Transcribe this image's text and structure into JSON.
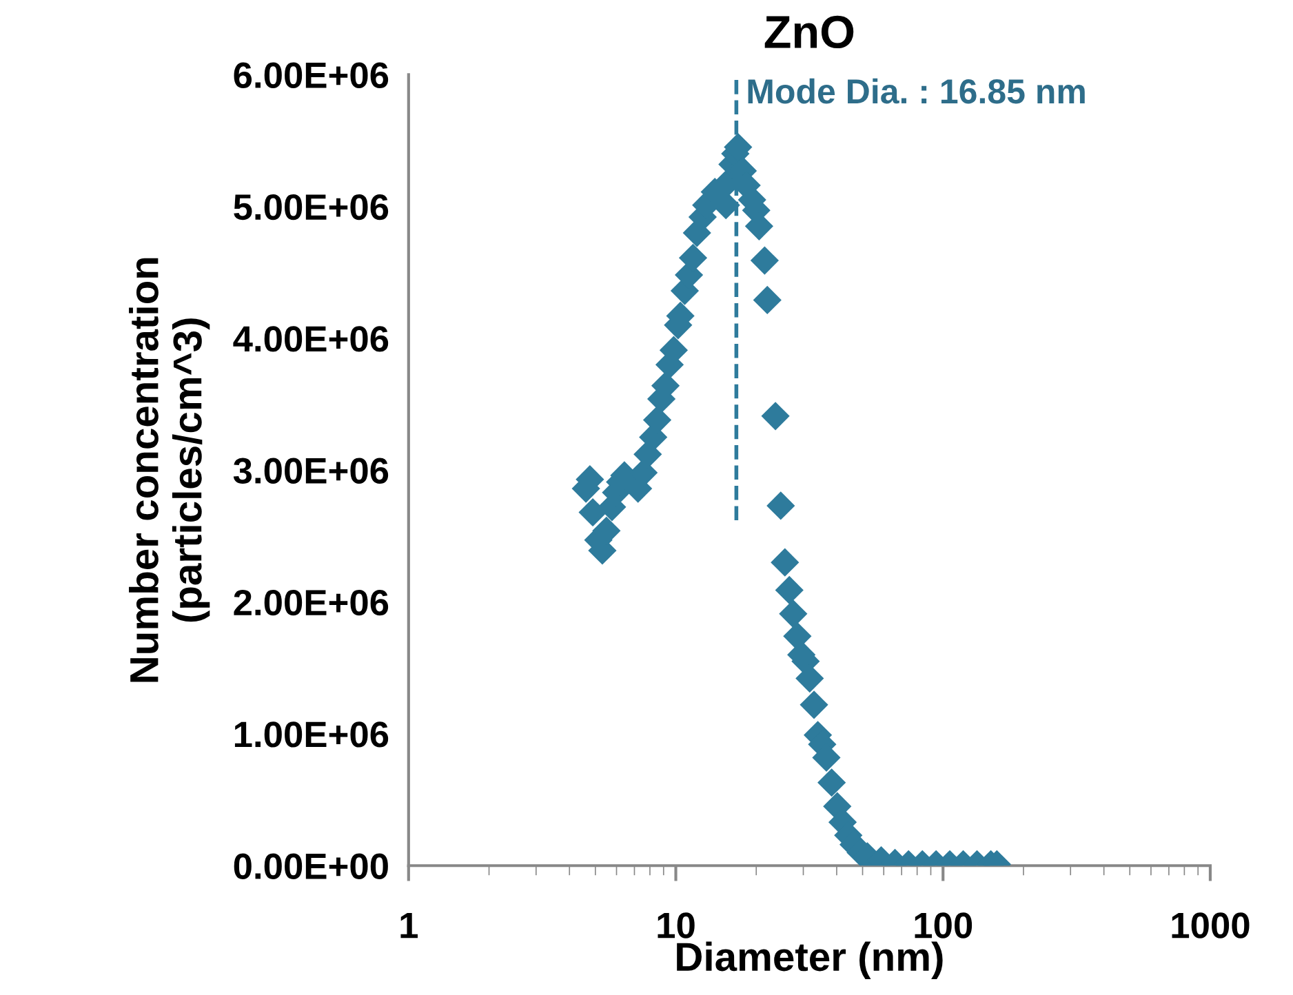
{
  "chart_data": {
    "type": "scatter",
    "title": "ZnO",
    "xlabel": "Diameter (nm)",
    "ylabel": "Number concentration\n(particles/cm^3)",
    "log": "x",
    "xlim": [
      1,
      1000
    ],
    "xticks": [
      1,
      10,
      100,
      1000
    ],
    "ylim": [
      0,
      6000000
    ],
    "yticks": [
      {
        "value": 0,
        "label": "0.00E+00"
      },
      {
        "value": 1000000,
        "label": "1.00E+06"
      },
      {
        "value": 2000000,
        "label": "2.00E+06"
      },
      {
        "value": 3000000,
        "label": "3.00E+06"
      },
      {
        "value": 4000000,
        "label": "4.00E+06"
      },
      {
        "value": 5000000,
        "label": "5.00E+06"
      },
      {
        "value": 6000000,
        "label": "6.00E+06"
      }
    ],
    "grid": false,
    "legend": false,
    "marker": "diamond",
    "annotations": [
      {
        "text": "Mode Dia. : 16.85 nm",
        "x": 16.85,
        "y": 5850000
      }
    ],
    "series": [
      {
        "color": "#2e7b9c",
        "x": [
          4.61,
          4.77,
          4.89,
          5.13,
          5.31,
          5.5,
          5.77,
          5.98,
          6.19,
          6.42,
          7.22,
          7.57,
          7.85,
          8.23,
          8.52,
          8.83,
          9.15,
          9.48,
          9.82,
          10.2,
          10.4,
          10.8,
          11.2,
          11.6,
          12.0,
          12.6,
          13.0,
          14.0,
          15.4,
          15.8,
          16.3,
          16.7,
          17.1,
          17.8,
          18.4,
          19.3,
          20.0,
          20.5,
          21.5,
          22.0,
          23.6,
          24.7,
          25.6,
          26.6,
          27.5,
          28.5,
          29.5,
          30.6,
          31.7,
          32.9,
          34.0,
          35.3,
          36.6,
          38.3,
          40.2,
          42.1,
          44.2,
          46.3,
          49.2,
          52.1,
          58.7,
          66.1,
          74.3,
          83.7,
          94.2,
          106,
          119,
          134,
          151,
          159
        ],
        "values": [
          2860000,
          2930000,
          2680000,
          2470000,
          2390000,
          2540000,
          2720000,
          2830000,
          2910000,
          2960000,
          2860000,
          2980000,
          3120000,
          3250000,
          3380000,
          3540000,
          3640000,
          3800000,
          3910000,
          4100000,
          4170000,
          4360000,
          4480000,
          4610000,
          4800000,
          4920000,
          5010000,
          5110000,
          5010000,
          5190000,
          5320000,
          5400000,
          5450000,
          5270000,
          5160000,
          5050000,
          4970000,
          4850000,
          4590000,
          4290000,
          3410000,
          2730000,
          2300000,
          2090000,
          1910000,
          1740000,
          1600000,
          1550000,
          1420000,
          1220000,
          990000,
          920000,
          820000,
          630000,
          450000,
          330000,
          230000,
          160000,
          100000,
          70000,
          40000,
          20000,
          10000,
          10000,
          10000,
          10000,
          10000,
          10000,
          10000,
          10000
        ]
      },
      {
        "type": "line",
        "color": "#2e7b9c",
        "line_style": "dashed",
        "marker": "none",
        "x": [
          16.85,
          16.85
        ],
        "values": [
          2620000,
          6000000
        ]
      }
    ]
  }
}
